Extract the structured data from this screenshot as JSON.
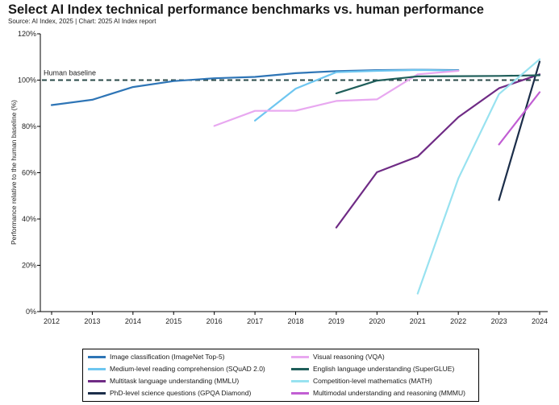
{
  "title": "Select AI Index technical performance benchmarks vs. human performance",
  "subtitle": "Source: AI Index, 2025 | Chart: 2025 AI Index report",
  "chart_data": {
    "type": "line",
    "ylabel": "Performance relative to the human baseline (%)",
    "xlabel": "",
    "xlim": [
      2012,
      2024
    ],
    "ylim": [
      0,
      120
    ],
    "x_ticks": [
      "2012",
      "2013",
      "2014",
      "2015",
      "2016",
      "2017",
      "2018",
      "2019",
      "2020",
      "2021",
      "2022",
      "2023",
      "2024"
    ],
    "y_ticks": [
      "0%",
      "20%",
      "40%",
      "60%",
      "80%",
      "100%",
      "120%"
    ],
    "grid": false,
    "legend_position": "bottom",
    "baseline": {
      "label": "Human baseline",
      "value": 100,
      "color": "#2a4a48"
    },
    "series": [
      {
        "name": "Image classification (ImageNet Top-5)",
        "color": "#2e75b6",
        "x": [
          2012,
          2013,
          2014,
          2015,
          2016,
          2017,
          2018,
          2019,
          2020,
          2021,
          2022
        ],
        "y": [
          89.2,
          91.5,
          97,
          99.6,
          100.8,
          101.4,
          103,
          103.9,
          104.3,
          104.5,
          104.3
        ]
      },
      {
        "name": "Medium-level reading comprehension (SQuAD 2.0)",
        "color": "#6ec6f0",
        "x": [
          2017,
          2018,
          2019,
          2020,
          2021,
          2022
        ],
        "y": [
          82.5,
          96.3,
          103.4,
          104,
          104.4,
          104.1
        ]
      },
      {
        "name": "Multitask language understanding (MMLU)",
        "color": "#6f2b85",
        "x": [
          2019,
          2020,
          2021,
          2022,
          2023,
          2024
        ],
        "y": [
          36.3,
          60.2,
          67,
          84,
          96.5,
          102.5
        ]
      },
      {
        "name": "PhD-level science questions (GPQA Diamond)",
        "color": "#1c2e4a",
        "x": [
          2023,
          2024
        ],
        "y": [
          48.2,
          108
        ]
      },
      {
        "name": "Visual reasoning (VQA)",
        "color": "#e8a8f0",
        "x": [
          2016,
          2017,
          2018,
          2019,
          2020,
          2021,
          2022
        ],
        "y": [
          80.2,
          86.7,
          86.8,
          91,
          91.7,
          102.5,
          104
        ]
      },
      {
        "name": "English language understanding (SuperGLUE)",
        "color": "#1f5e5a",
        "x": [
          2019,
          2020,
          2021,
          2022,
          2023,
          2024
        ],
        "y": [
          94.3,
          99.8,
          101.6,
          101.7,
          101.8,
          102.1
        ]
      },
      {
        "name": "Competition-level mathematics (MATH)",
        "color": "#98e2f0",
        "x": [
          2021,
          2022,
          2023,
          2024
        ],
        "y": [
          7.8,
          57.5,
          94,
          109
        ]
      },
      {
        "name": "Multimodal understanding and reasoning (MMMU)",
        "color": "#c15ed3",
        "x": [
          2023,
          2024
        ],
        "y": [
          72.2,
          94.8
        ]
      }
    ]
  }
}
